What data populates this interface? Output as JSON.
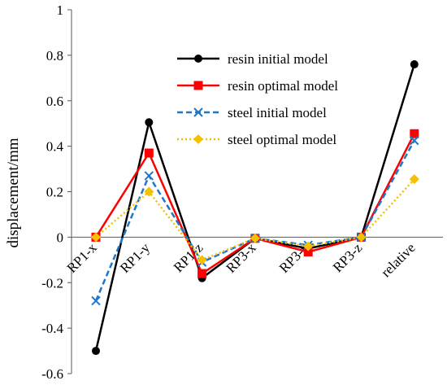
{
  "chart_data": {
    "type": "line",
    "title": "",
    "xlabel": "",
    "ylabel": "displacement/mm",
    "ylim": [
      -0.6,
      1
    ],
    "yticks": [
      -0.6,
      -0.4,
      -0.2,
      0,
      0.2,
      0.4,
      0.6,
      0.8,
      1
    ],
    "ytick_labels": [
      "-0.6",
      "-0.4",
      "-0.2",
      "0",
      "0.2",
      "0.4",
      "0.6",
      "0.8",
      "1"
    ],
    "categories": [
      "RP1-x",
      "RP1-y",
      "RP1-z",
      "RP3-x",
      "RP3-y",
      "RP3-z",
      "relative"
    ],
    "grid": false,
    "legend_position": "top-right",
    "series": [
      {
        "name": "resin initial model",
        "color": "#000000",
        "dash": "solid",
        "marker": "circle",
        "values": [
          -0.5,
          0.505,
          -0.18,
          -0.005,
          -0.05,
          0.0,
          0.76
        ]
      },
      {
        "name": "resin optimal model",
        "color": "#ff0000",
        "dash": "solid",
        "marker": "square",
        "values": [
          0.0,
          0.37,
          -0.16,
          -0.005,
          -0.065,
          0.0,
          0.455
        ]
      },
      {
        "name": "steel initial model",
        "color": "#1f77c8",
        "dash": "dashed",
        "marker": "x",
        "values": [
          -0.28,
          0.27,
          -0.11,
          -0.005,
          -0.035,
          0.0,
          0.425
        ]
      },
      {
        "name": "steel optimal model",
        "color": "#f5c000",
        "dash": "dotted",
        "marker": "diamond",
        "values": [
          0.0,
          0.2,
          -0.1,
          -0.005,
          -0.04,
          0.0,
          0.255
        ]
      }
    ]
  }
}
